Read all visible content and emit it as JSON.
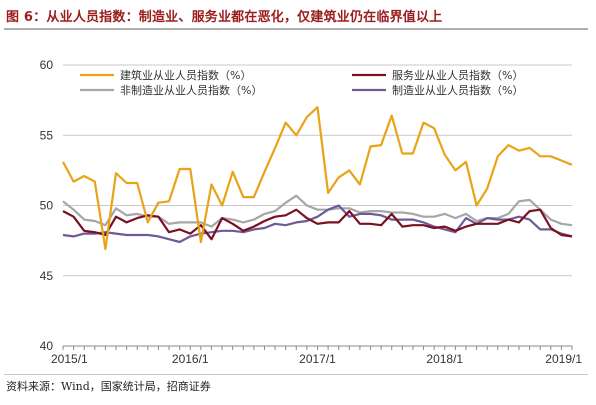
{
  "title": "图 6：从业人员指数：制造业、服务业都在恶化，仅建筑业仍在临界值以上",
  "source": "资料来源：Wind，国家统计局，招商证券",
  "chart_data": {
    "type": "line",
    "title": "图 6：从业人员指数：制造业、服务业都在恶化，仅建筑业仍在临界值以上",
    "ylim": [
      40,
      60
    ],
    "yticks": [
      40,
      45,
      50,
      55,
      60
    ],
    "xticks": [
      "2015/1",
      "2016/1",
      "2017/1",
      "2018/1",
      "2019/1"
    ],
    "x": [
      "2015/1",
      "2015/2",
      "2015/3",
      "2015/4",
      "2015/5",
      "2015/6",
      "2015/7",
      "2015/8",
      "2015/9",
      "2015/10",
      "2015/11",
      "2015/12",
      "2016/1",
      "2016/2",
      "2016/3",
      "2016/4",
      "2016/5",
      "2016/6",
      "2016/7",
      "2016/8",
      "2016/9",
      "2016/10",
      "2016/11",
      "2016/12",
      "2017/1",
      "2017/2",
      "2017/3",
      "2017/4",
      "2017/5",
      "2017/6",
      "2017/7",
      "2017/8",
      "2017/9",
      "2017/10",
      "2017/11",
      "2017/12",
      "2018/1",
      "2018/2",
      "2018/3",
      "2018/4",
      "2018/5",
      "2018/6",
      "2018/7",
      "2018/8",
      "2018/9",
      "2018/10",
      "2018/11",
      "2018/12",
      "2019/1"
    ],
    "grid": true,
    "legend": "top",
    "series": [
      {
        "name": "建筑业从业人员指数（%）",
        "color": "#e8a317",
        "values": [
          53.1,
          51.7,
          52.1,
          51.7,
          46.9,
          52.3,
          51.6,
          51.6,
          48.8,
          50.2,
          50.3,
          52.6,
          52.6,
          47.4,
          51.5,
          50.0,
          52.4,
          50.6,
          50.6,
          52.4,
          54.1,
          55.9,
          55.0,
          56.3,
          57.0,
          50.9,
          52.0,
          52.5,
          51.5,
          54.2,
          54.3,
          56.4,
          53.7,
          53.7,
          55.9,
          55.5,
          53.6,
          52.5,
          53.1,
          50.0,
          51.2,
          53.5,
          54.3,
          53.9,
          54.1,
          53.5,
          53.5,
          53.2,
          52.9
        ]
      },
      {
        "name": "服务业从业人员指数（%）",
        "color": "#7a1020",
        "values": [
          49.6,
          49.2,
          48.2,
          48.1,
          47.9,
          49.2,
          48.8,
          49.1,
          49.3,
          49.2,
          48.1,
          48.3,
          48.0,
          48.6,
          47.6,
          49.1,
          48.7,
          48.2,
          48.5,
          48.9,
          49.2,
          49.3,
          49.7,
          49.1,
          48.7,
          48.8,
          48.8,
          49.6,
          48.7,
          48.7,
          48.6,
          49.4,
          48.5,
          48.6,
          48.6,
          48.4,
          48.5,
          48.2,
          48.5,
          48.7,
          48.7,
          48.7,
          49.0,
          48.8,
          49.6,
          49.7,
          48.4,
          47.9,
          47.8
        ]
      },
      {
        "name": "非制造业从业人员指数（%）",
        "color": "#a6a6a6",
        "values": [
          50.3,
          49.7,
          49.0,
          48.9,
          48.6,
          49.8,
          49.3,
          49.4,
          49.2,
          49.2,
          48.7,
          48.8,
          48.8,
          48.8,
          48.5,
          49.1,
          49.0,
          48.8,
          49.0,
          49.4,
          49.6,
          50.2,
          50.7,
          50.0,
          49.7,
          49.7,
          49.8,
          49.8,
          49.5,
          49.6,
          49.6,
          49.5,
          49.5,
          49.4,
          49.2,
          49.2,
          49.4,
          49.1,
          49.4,
          48.9,
          49.1,
          49.1,
          49.4,
          50.3,
          50.4,
          49.7,
          49.0,
          48.7,
          48.6
        ]
      },
      {
        "name": "制造业从业人员指数（%）",
        "color": "#6f5a96",
        "values": [
          47.9,
          47.8,
          48.0,
          48.0,
          48.1,
          48.0,
          47.9,
          47.9,
          47.9,
          47.8,
          47.6,
          47.4,
          47.8,
          48.0,
          48.1,
          48.2,
          48.2,
          48.1,
          48.3,
          48.4,
          48.7,
          48.6,
          48.8,
          48.9,
          49.2,
          49.7,
          50.0,
          49.2,
          49.4,
          49.4,
          49.3,
          49.0,
          49.0,
          49.0,
          48.8,
          48.5,
          48.3,
          48.1,
          49.1,
          48.7,
          49.1,
          49.0,
          49.0,
          49.2,
          49.0,
          48.3,
          48.3,
          48.0,
          47.8
        ]
      }
    ]
  }
}
